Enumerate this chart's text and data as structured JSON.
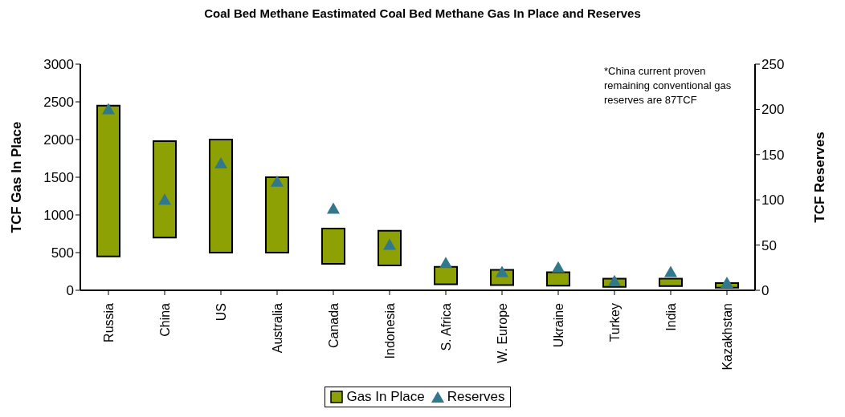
{
  "chart_data": {
    "type": "bar",
    "title": "Coal Bed Methane Eastimated Coal Bed Methane Gas In Place and Reserves",
    "ylabel": "TCF Gas In Place",
    "y2label": "TCF Reserves",
    "categories": [
      "Russia",
      "China",
      "US",
      "Australia",
      "Canada",
      "Indonesia",
      "S. Africa",
      "W. Europe",
      "Ukraine",
      "Turkey",
      "India",
      "Kazakhstan"
    ],
    "series": [
      {
        "name": "Gas In Place",
        "color": "#8da104",
        "base": [
          450,
          700,
          500,
          500,
          350,
          330,
          80,
          70,
          60,
          45,
          55,
          35
        ],
        "values": [
          2000,
          1280,
          1500,
          1000,
          470,
          460,
          230,
          200,
          180,
          110,
          100,
          60
        ]
      },
      {
        "name": "Reserves",
        "type": "scatter",
        "axis": "y2",
        "marker": "triangle",
        "color": "#31788c",
        "values": [
          200,
          100,
          140,
          120,
          90,
          50,
          30,
          20,
          25,
          10,
          20,
          8
        ]
      }
    ],
    "ylim": [
      0,
      3000
    ],
    "yticks": [
      0,
      500,
      1000,
      1500,
      2000,
      2500,
      3000
    ],
    "y2lim": [
      0,
      250
    ],
    "y2ticks": [
      0,
      50,
      100,
      150,
      200,
      250
    ],
    "annotations": [
      "*China current proven remaining conventional gas reserves are 87TCF"
    ],
    "legend": "bottom"
  }
}
